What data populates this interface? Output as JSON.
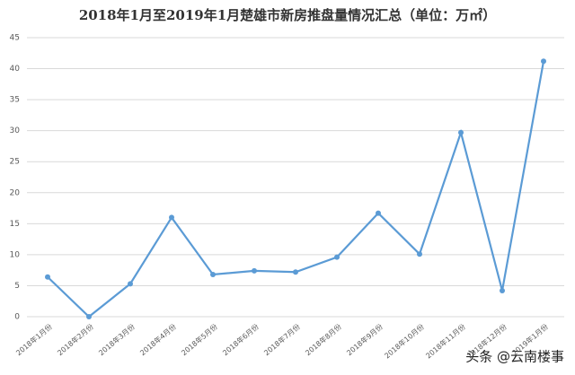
{
  "chart_data": {
    "type": "line",
    "title": "2018年1月至2019年1月楚雄市新房推盘量情况汇总（单位：万㎡）",
    "categories": [
      "2018年1月份",
      "2018年2月份",
      "2018年3月份",
      "2018年4月份",
      "2018年5月份",
      "2018年6月份",
      "2018年7月份",
      "2018年8月份",
      "2018年9月份",
      "2018年10月份",
      "2018年11月份",
      "2018年12月份",
      "2019年1月份"
    ],
    "series": [
      {
        "name": "推盘量",
        "color": "#5b9bd5",
        "values": [
          6.4,
          0,
          5.3,
          16,
          6.8,
          7.4,
          7.2,
          9.6,
          16.7,
          10.1,
          29.7,
          4.2,
          41.2
        ]
      }
    ],
    "ylim": [
      0,
      45
    ],
    "yticks": [
      0,
      5,
      10,
      15,
      20,
      25,
      30,
      35,
      40,
      45
    ],
    "grid": true
  },
  "watermark": "头条 @云南楼事"
}
